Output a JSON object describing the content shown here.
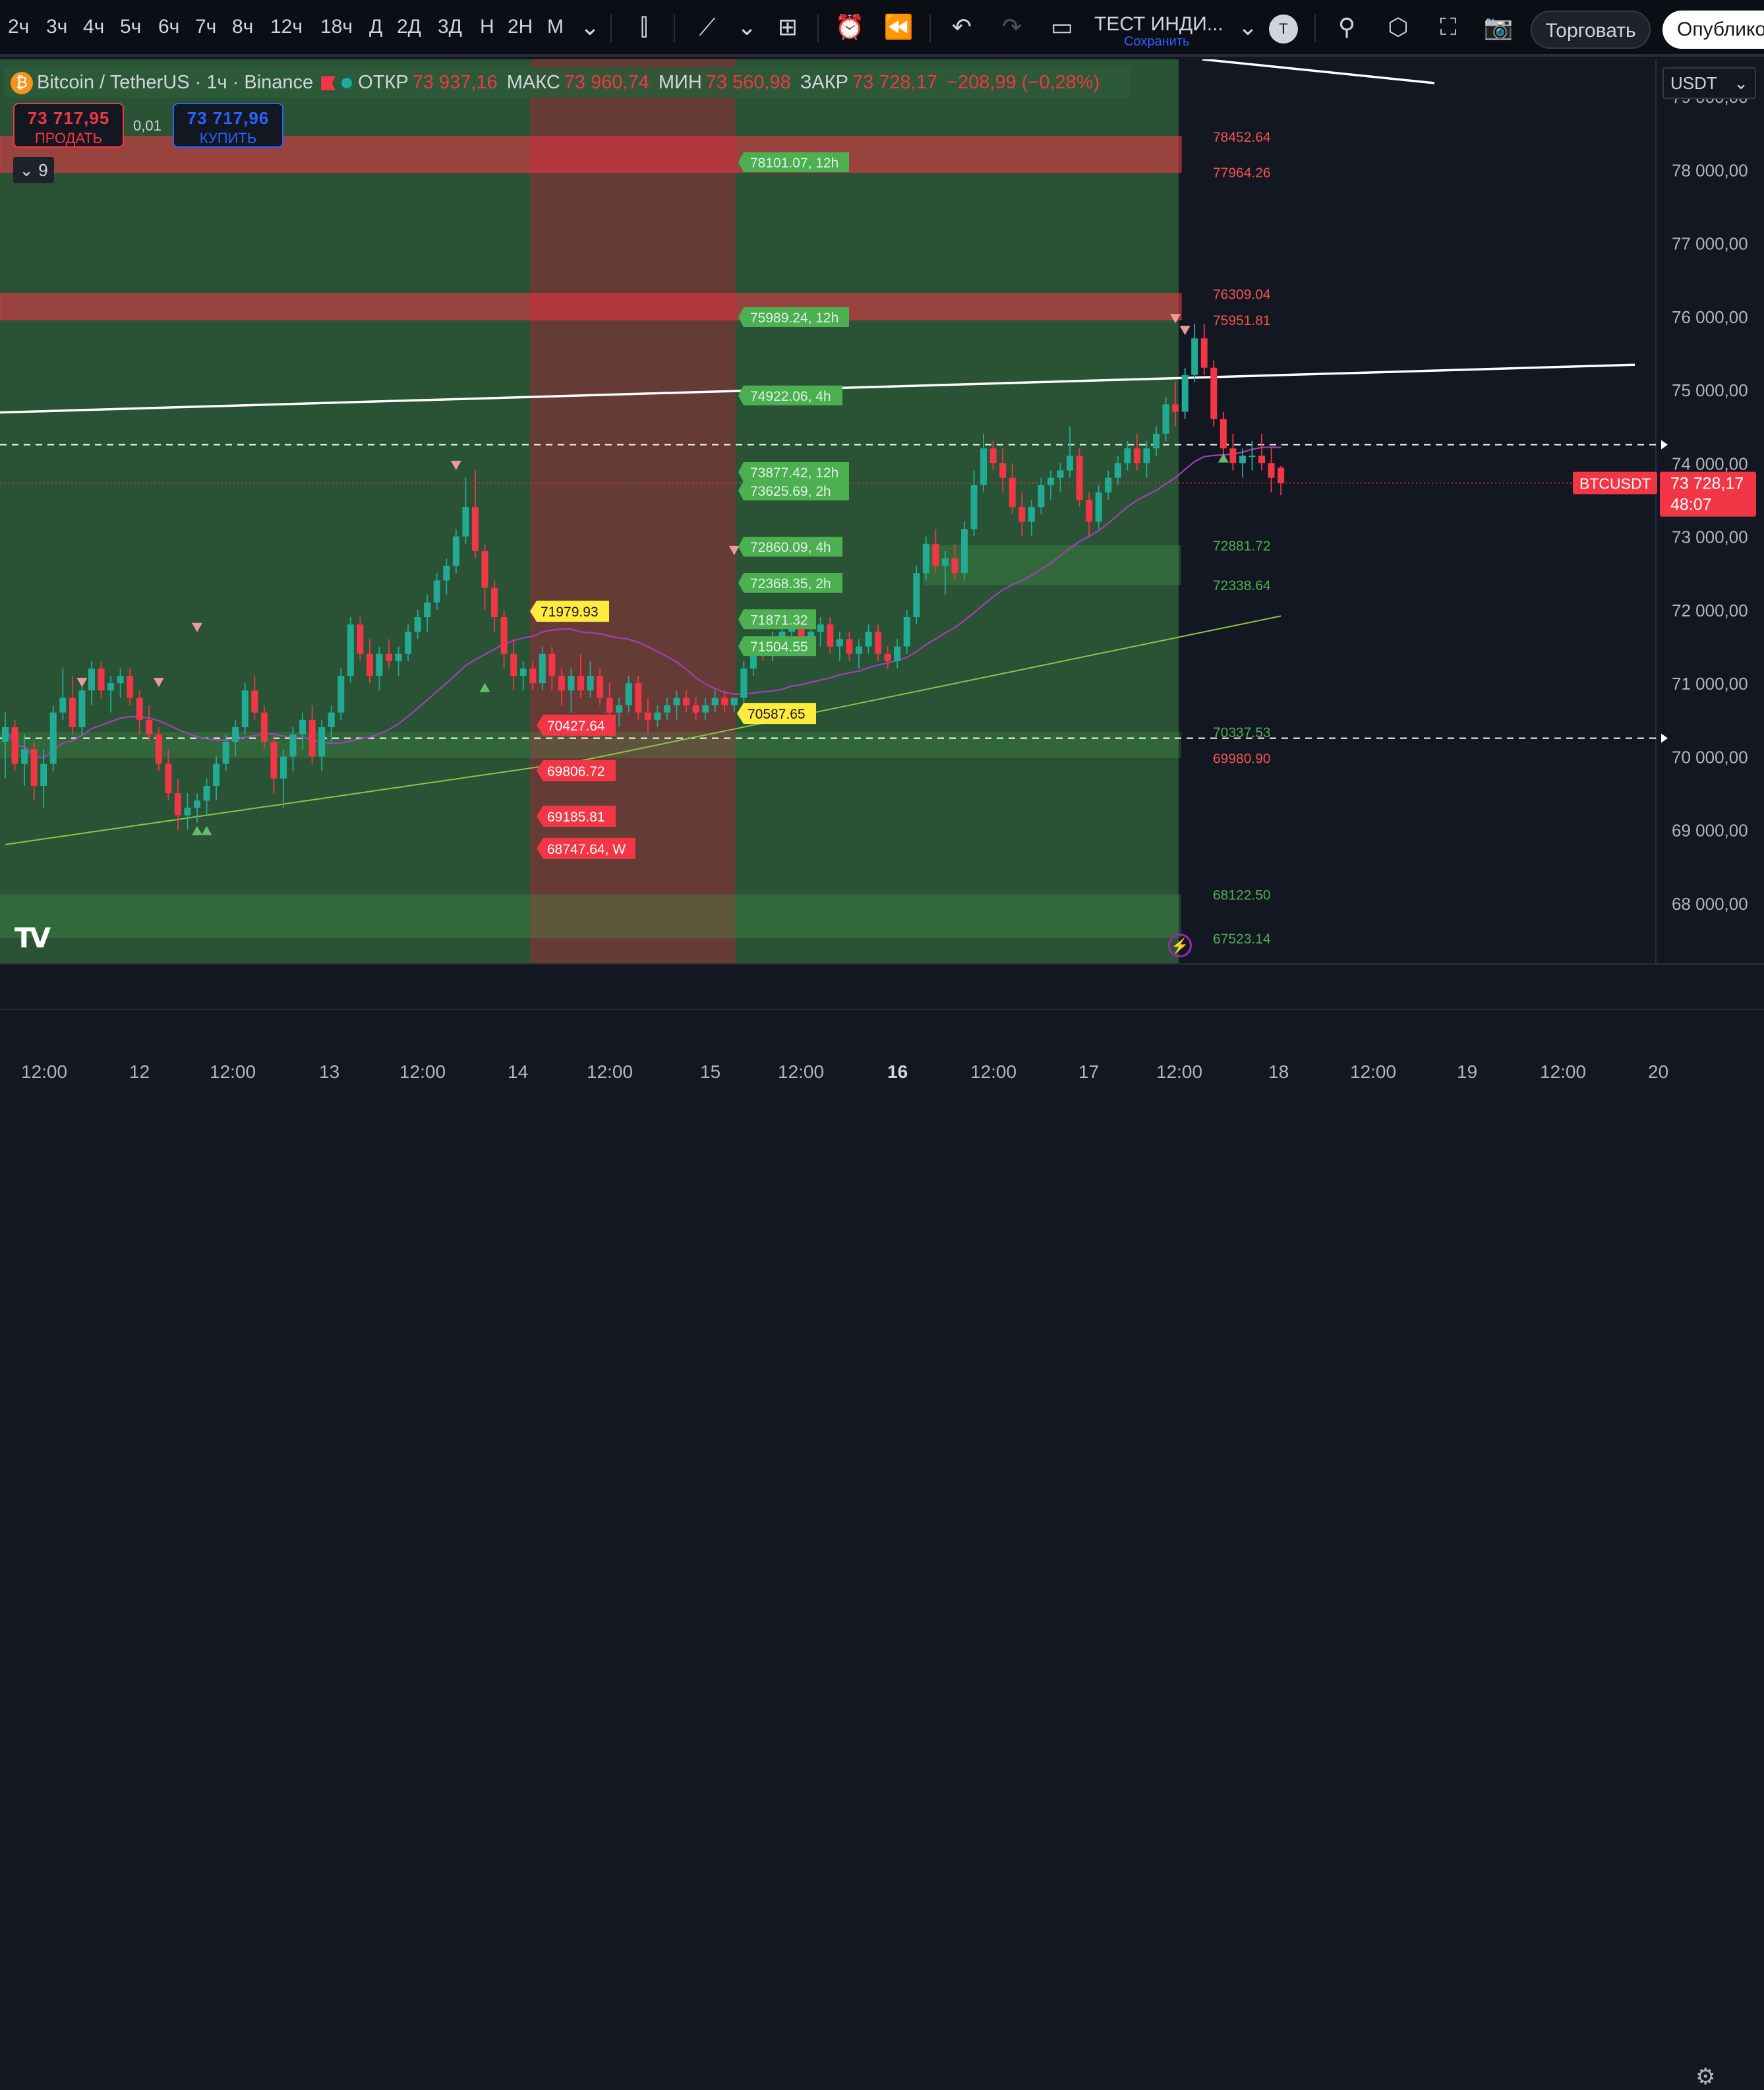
{
  "toolbar": {
    "timeframes": [
      "2ч",
      "3ч",
      "4ч",
      "5ч",
      "6ч",
      "7ч",
      "8ч",
      "12ч",
      "18ч",
      "Д",
      "2Д",
      "3Д",
      "Н",
      "2Н",
      "М"
    ],
    "indicator_name": "ТЕСТ ИНДИ...",
    "indicator_save": "Сохранить",
    "avatar_letter": "T",
    "trade_label": "Торговать",
    "publish_label": "Опублико"
  },
  "legend": {
    "symbol": "Bitcoin / TetherUS · 1ч · Binance",
    "open_label": "ОТКР",
    "open": "73 937,16",
    "high_label": "МАКС",
    "high": "73 960,74",
    "low_label": "МИН",
    "low": "73 560,98",
    "close_label": "ЗАКР",
    "close": "73 728,17",
    "change": "−208,99 (−0,28%)"
  },
  "trade": {
    "sell_price": "73 717,95",
    "sell_label": "ПРОДАТЬ",
    "spread": "0,01",
    "buy_price": "73 717,96",
    "buy_label": "КУПИТЬ"
  },
  "collapse_count": "9",
  "currency": "USDT",
  "price_axis": {
    "ticks": [
      "79 000,00",
      "78 000,00",
      "77 000,00",
      "76 000,00",
      "75 000,00",
      "74 000,00",
      "73 000,00",
      "72 000,00",
      "71 000,00",
      "70 000,00",
      "69 000,00",
      "68 000,00"
    ],
    "symbol_tag": "BTCUSDT",
    "last_price": "73 728,17",
    "countdown": "48:07"
  },
  "time_axis": [
    "12:00",
    "12",
    "12:00",
    "13",
    "12:00",
    "14",
    "12:00",
    "15",
    "12:00",
    "16",
    "12:00",
    "17",
    "12:00",
    "18",
    "12:00",
    "19",
    "12:00",
    "20"
  ],
  "colors": {
    "up": "#22ab94",
    "down": "#f23645",
    "bg": "#131722",
    "green_zone": "rgba(76,175,80,0.28)",
    "red_zone": "rgba(242,54,69,0.35)",
    "ma_purple": "#a43fb7",
    "ma_green": "#8bc34a"
  },
  "chart_data": {
    "type": "candlestick",
    "symbol": "BTCUSDT",
    "ylim": [
      67300,
      79800
    ],
    "last_price": 73728.17,
    "candles": [
      [
        70200,
        70600,
        69700,
        70400
      ],
      [
        70400,
        70500,
        69800,
        69900
      ],
      [
        69900,
        70300,
        69600,
        70100
      ],
      [
        70100,
        70200,
        69400,
        69600
      ],
      [
        69600,
        70100,
        69300,
        69900
      ],
      [
        69900,
        70700,
        69800,
        70600
      ],
      [
        70600,
        71200,
        70500,
        70800
      ],
      [
        70800,
        71100,
        70300,
        70400
      ],
      [
        70400,
        71000,
        70300,
        70900
      ],
      [
        70900,
        71300,
        70700,
        71200
      ],
      [
        71200,
        71300,
        70800,
        70900
      ],
      [
        70900,
        71100,
        70600,
        71000
      ],
      [
        71000,
        71200,
        70800,
        71100
      ],
      [
        71100,
        71200,
        70700,
        70800
      ],
      [
        70800,
        70900,
        70300,
        70500
      ],
      [
        70500,
        70700,
        70200,
        70300
      ],
      [
        70300,
        70400,
        69800,
        69900
      ],
      [
        69900,
        70100,
        69400,
        69500
      ],
      [
        69500,
        69700,
        69000,
        69200
      ],
      [
        69200,
        69500,
        69000,
        69300
      ],
      [
        69300,
        69500,
        69100,
        69400
      ],
      [
        69400,
        69700,
        69200,
        69600
      ],
      [
        69600,
        70000,
        69400,
        69900
      ],
      [
        69900,
        70300,
        69800,
        70200
      ],
      [
        70200,
        70500,
        70000,
        70400
      ],
      [
        70400,
        71000,
        70300,
        70900
      ],
      [
        70900,
        71100,
        70500,
        70600
      ],
      [
        70600,
        70700,
        70100,
        70200
      ],
      [
        70200,
        70300,
        69500,
        69700
      ],
      [
        69700,
        70100,
        69300,
        70000
      ],
      [
        70000,
        70400,
        69800,
        70300
      ],
      [
        70300,
        70600,
        70100,
        70500
      ],
      [
        70500,
        70700,
        69900,
        70000
      ],
      [
        70000,
        70500,
        69800,
        70400
      ],
      [
        70400,
        70700,
        70200,
        70600
      ],
      [
        70600,
        71200,
        70500,
        71100
      ],
      [
        71100,
        71900,
        71000,
        71800
      ],
      [
        71800,
        71900,
        71300,
        71400
      ],
      [
        71400,
        71600,
        71000,
        71100
      ],
      [
        71100,
        71500,
        70900,
        71400
      ],
      [
        71400,
        71600,
        71200,
        71300
      ],
      [
        71300,
        71500,
        71100,
        71400
      ],
      [
        71400,
        71800,
        71300,
        71700
      ],
      [
        71700,
        72000,
        71600,
        71900
      ],
      [
        71900,
        72200,
        71700,
        72100
      ],
      [
        72100,
        72500,
        72000,
        72400
      ],
      [
        72400,
        72700,
        72200,
        72600
      ],
      [
        72600,
        73100,
        72500,
        73000
      ],
      [
        73000,
        73800,
        72900,
        73400
      ],
      [
        73400,
        73900,
        72700,
        72800
      ],
      [
        72800,
        72900,
        72000,
        72300
      ],
      [
        72300,
        72400,
        71700,
        71900
      ],
      [
        71900,
        72000,
        71200,
        71400
      ],
      [
        71400,
        71600,
        70900,
        71100
      ],
      [
        71100,
        71300,
        70900,
        71200
      ],
      [
        71200,
        71300,
        70900,
        71000
      ],
      [
        71000,
        71500,
        70900,
        71400
      ],
      [
        71400,
        71500,
        70900,
        71100
      ],
      [
        71100,
        71200,
        70700,
        70900
      ],
      [
        70900,
        71200,
        70600,
        71100
      ],
      [
        71100,
        71400,
        70800,
        70900
      ],
      [
        70900,
        71300,
        70800,
        71100
      ],
      [
        71100,
        71200,
        70700,
        70800
      ],
      [
        70800,
        71000,
        70400,
        70600
      ],
      [
        70600,
        70800,
        70400,
        70700
      ],
      [
        70700,
        71100,
        70600,
        71000
      ],
      [
        71000,
        71100,
        70500,
        70600
      ],
      [
        70600,
        70800,
        70300,
        70500
      ],
      [
        70500,
        70700,
        70400,
        70600
      ],
      [
        70600,
        70800,
        70500,
        70700
      ],
      [
        70700,
        70900,
        70500,
        70800
      ],
      [
        70800,
        70900,
        70600,
        70700
      ],
      [
        70700,
        70800,
        70500,
        70600
      ],
      [
        70600,
        70800,
        70500,
        70700
      ],
      [
        70700,
        70900,
        70600,
        70800
      ],
      [
        70800,
        70900,
        70600,
        70700
      ],
      [
        70700,
        70800,
        70600,
        70800
      ],
      [
        70800,
        71300,
        70700,
        71200
      ],
      [
        71200,
        71600,
        71100,
        71500
      ],
      [
        71500,
        71600,
        71300,
        71400
      ],
      [
        71400,
        71700,
        71300,
        71600
      ],
      [
        71600,
        71800,
        71500,
        71700
      ],
      [
        71700,
        72000,
        71600,
        71900
      ],
      [
        71900,
        72000,
        71500,
        71600
      ],
      [
        71600,
        71800,
        71400,
        71700
      ],
      [
        71700,
        71900,
        71500,
        71800
      ],
      [
        71800,
        71900,
        71400,
        71500
      ],
      [
        71500,
        71700,
        71300,
        71600
      ],
      [
        71600,
        71700,
        71300,
        71400
      ],
      [
        71400,
        71600,
        71200,
        71500
      ],
      [
        71500,
        71800,
        71400,
        71700
      ],
      [
        71700,
        71800,
        71300,
        71400
      ],
      [
        71400,
        71500,
        71200,
        71300
      ],
      [
        71300,
        71600,
        71200,
        71500
      ],
      [
        71500,
        72000,
        71400,
        71900
      ],
      [
        71900,
        72600,
        71800,
        72500
      ],
      [
        72500,
        73000,
        72400,
        72900
      ],
      [
        72900,
        73100,
        72500,
        72600
      ],
      [
        72600,
        72800,
        72200,
        72700
      ],
      [
        72700,
        72900,
        72400,
        72500
      ],
      [
        72500,
        73200,
        72400,
        73100
      ],
      [
        73100,
        73900,
        73000,
        73700
      ],
      [
        73700,
        74400,
        73600,
        74200
      ],
      [
        74200,
        74300,
        73900,
        74000
      ],
      [
        74000,
        74200,
        73600,
        73800
      ],
      [
        73800,
        74000,
        73300,
        73400
      ],
      [
        73400,
        73600,
        73000,
        73200
      ],
      [
        73200,
        73500,
        73000,
        73400
      ],
      [
        73400,
        73800,
        73300,
        73700
      ],
      [
        73700,
        73900,
        73500,
        73800
      ],
      [
        73800,
        74000,
        73600,
        73900
      ],
      [
        73900,
        74500,
        73800,
        74100
      ],
      [
        74100,
        74200,
        73400,
        73500
      ],
      [
        73500,
        73600,
        73000,
        73200
      ],
      [
        73200,
        73700,
        73100,
        73600
      ],
      [
        73600,
        73900,
        73500,
        73800
      ],
      [
        73800,
        74100,
        73700,
        74000
      ],
      [
        74000,
        74300,
        73900,
        74200
      ],
      [
        74200,
        74400,
        73900,
        74000
      ],
      [
        74000,
        74300,
        73800,
        74200
      ],
      [
        74200,
        74500,
        74100,
        74400
      ],
      [
        74400,
        74900,
        74300,
        74800
      ],
      [
        74800,
        75100,
        74500,
        74700
      ],
      [
        74700,
        75300,
        74600,
        75200
      ],
      [
        75200,
        75900,
        75100,
        75700
      ],
      [
        75700,
        75900,
        75200,
        75300
      ],
      [
        75300,
        75400,
        74500,
        74600
      ],
      [
        74600,
        74700,
        74100,
        74200
      ],
      [
        74200,
        74400,
        73900,
        74000
      ],
      [
        74000,
        74200,
        73800,
        74100
      ],
      [
        74100,
        74300,
        73900,
        74100
      ],
      [
        74100,
        74400,
        73900,
        74000
      ],
      [
        74000,
        74200,
        73600,
        73800
      ],
      [
        73937.16,
        73960.74,
        73560.98,
        73728.17
      ]
    ],
    "green_signals": [
      69000,
      69000,
      70950,
      74080
    ],
    "red_signals": [
      71000,
      71000,
      73960,
      71750,
      72700,
      75960,
      75800
    ],
    "levels_right": [
      78452.64,
      77964.26,
      76309.04,
      75951.81,
      72881.72,
      72338.64,
      70337.53,
      69980.9,
      68122.5,
      67523.14
    ],
    "htf_levels": [
      "78101.07, 12h",
      "75989.24, 12h",
      "74922.06, 4h",
      "73877.42, 12h",
      "73625.69, 2h",
      "72860.09, 4h",
      "72368.35, 2h",
      "71871.32",
      "71504.55"
    ],
    "level_labels": [
      "70587.65",
      "71979.93",
      "70427.64",
      "69806.72",
      "69185.81",
      "68747.64, W"
    ],
    "dashed_lines": [
      74250,
      70250
    ],
    "trend_line": [
      [
        0,
        74690
      ],
      [
        2480,
        75340
      ]
    ]
  }
}
